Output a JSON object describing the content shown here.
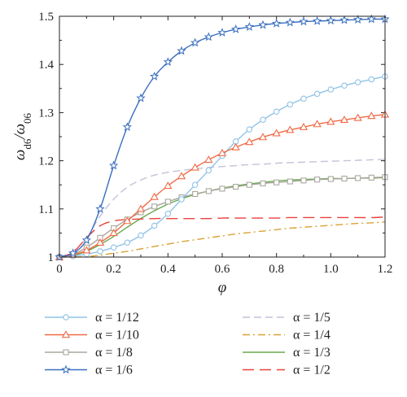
{
  "chart_data": {
    "type": "line",
    "xlabel": "φ",
    "ylabel": "ω_d6/ω_06",
    "xlim": [
      0,
      1.2
    ],
    "ylim": [
      1.0,
      1.5
    ],
    "xticks": [
      "0",
      "0.2",
      "0.4",
      "0.6",
      "0.8",
      "1.0",
      "1.2"
    ],
    "yticks": [
      "1",
      "1.1",
      "1.2",
      "1.3",
      "1.4",
      "1.5"
    ],
    "grid": false,
    "legend_position": "bottom, two columns",
    "x": [
      0,
      0.05,
      0.1,
      0.15,
      0.2,
      0.25,
      0.3,
      0.35,
      0.4,
      0.45,
      0.5,
      0.55,
      0.6,
      0.65,
      0.7,
      0.75,
      0.8,
      0.85,
      0.9,
      0.95,
      1.0,
      1.05,
      1.1,
      1.15,
      1.2
    ],
    "series": [
      {
        "name": "α = 1/12",
        "color": "#8fc3e6",
        "dash": "",
        "marker": "circle",
        "values": [
          1.0,
          1.002,
          1.006,
          1.012,
          1.02,
          1.03,
          1.045,
          1.065,
          1.09,
          1.12,
          1.15,
          1.18,
          1.21,
          1.24,
          1.265,
          1.285,
          1.302,
          1.317,
          1.329,
          1.339,
          1.348,
          1.356,
          1.363,
          1.369,
          1.375
        ]
      },
      {
        "name": "α = 1/10",
        "color": "#ef6a45",
        "dash": "",
        "marker": "triangle",
        "values": [
          1.0,
          1.005,
          1.014,
          1.03,
          1.05,
          1.075,
          1.1,
          1.125,
          1.148,
          1.168,
          1.186,
          1.202,
          1.216,
          1.228,
          1.239,
          1.249,
          1.257,
          1.264,
          1.27,
          1.276,
          1.281,
          1.285,
          1.289,
          1.293,
          1.296
        ]
      },
      {
        "name": "α = 1/8",
        "color": "#a9a79d",
        "dash": "",
        "marker": "square",
        "values": [
          1.0,
          1.006,
          1.02,
          1.04,
          1.06,
          1.078,
          1.093,
          1.105,
          1.115,
          1.124,
          1.131,
          1.137,
          1.142,
          1.146,
          1.15,
          1.153,
          1.155,
          1.157,
          1.159,
          1.161,
          1.162,
          1.163,
          1.164,
          1.165,
          1.166
        ]
      },
      {
        "name": "α = 1/6",
        "color": "#3a6fbf",
        "dash": "",
        "marker": "star",
        "values": [
          1.0,
          1.008,
          1.035,
          1.1,
          1.19,
          1.27,
          1.33,
          1.375,
          1.405,
          1.428,
          1.445,
          1.457,
          1.466,
          1.473,
          1.478,
          1.482,
          1.485,
          1.487,
          1.489,
          1.49,
          1.491,
          1.492,
          1.493,
          1.494,
          1.494
        ]
      },
      {
        "name": "α = 1/5",
        "color": "#c4c2d8",
        "dash": "9,5",
        "marker": "none",
        "values": [
          1.0,
          1.012,
          1.04,
          1.085,
          1.12,
          1.145,
          1.16,
          1.17,
          1.176,
          1.18,
          1.183,
          1.186,
          1.188,
          1.19,
          1.192,
          1.193,
          1.195,
          1.196,
          1.197,
          1.198,
          1.199,
          1.2,
          1.201,
          1.202,
          1.203
        ]
      },
      {
        "name": "α = 1/4",
        "color": "#d9a235",
        "dash": "9,4,2,4",
        "marker": "none",
        "values": [
          1.0,
          1.0,
          1.001,
          1.004,
          1.008,
          1.012,
          1.017,
          1.022,
          1.027,
          1.032,
          1.036,
          1.04,
          1.044,
          1.048,
          1.051,
          1.054,
          1.057,
          1.06,
          1.062,
          1.064,
          1.066,
          1.068,
          1.07,
          1.071,
          1.073
        ]
      },
      {
        "name": "α = 1/3",
        "color": "#6aa84f",
        "dash": "",
        "marker": "none",
        "values": [
          1.0,
          1.003,
          1.012,
          1.026,
          1.043,
          1.062,
          1.08,
          1.096,
          1.11,
          1.121,
          1.13,
          1.137,
          1.143,
          1.148,
          1.152,
          1.155,
          1.158,
          1.16,
          1.161,
          1.162,
          1.163,
          1.163,
          1.164,
          1.164,
          1.165
        ]
      },
      {
        "name": "α = 1/2",
        "color": "#e8423c",
        "dash": "14,7",
        "marker": "none",
        "values": [
          1.0,
          1.01,
          1.04,
          1.065,
          1.075,
          1.078,
          1.079,
          1.08,
          1.08,
          1.08,
          1.08,
          1.08,
          1.081,
          1.081,
          1.081,
          1.081,
          1.081,
          1.082,
          1.082,
          1.082,
          1.082,
          1.082,
          1.082,
          1.082,
          1.083
        ]
      }
    ]
  }
}
